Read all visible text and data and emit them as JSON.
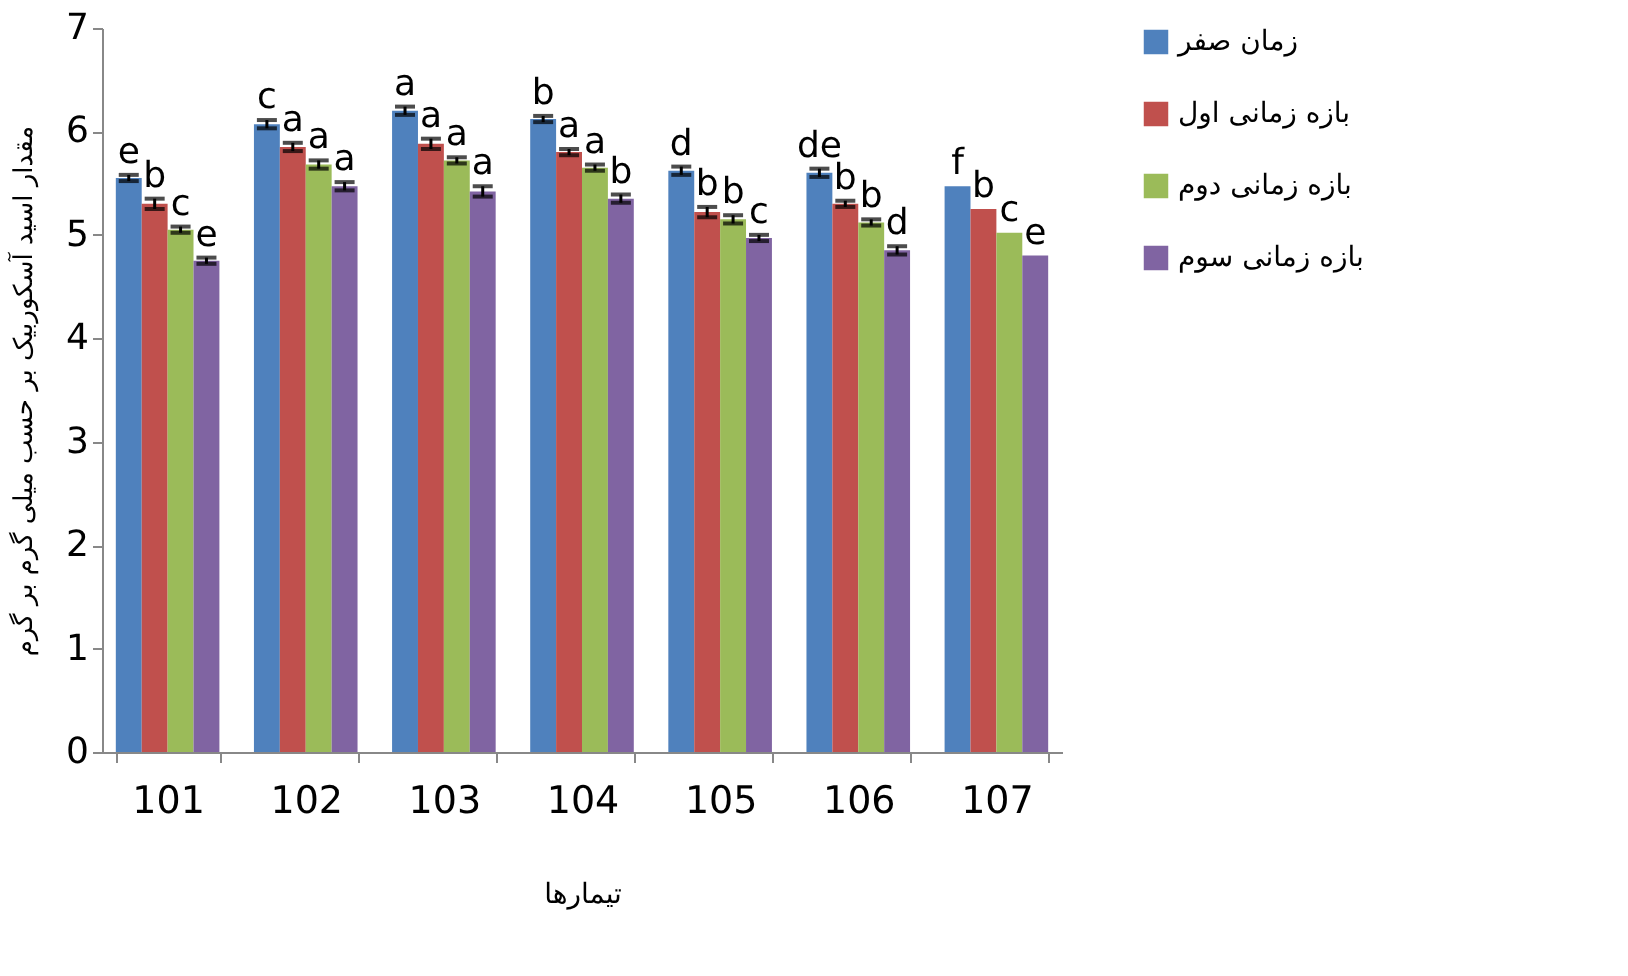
{
  "chart_data": {
    "type": "bar",
    "xlabel": "تیمارها",
    "ylabel": "مقدار اسید آسکوربیک بر حسب میلی گرم بر گرم",
    "categories": [
      "101",
      "102",
      "103",
      "104",
      "105",
      "106",
      "107"
    ],
    "series": [
      {
        "name": "زمان صفر",
        "color": "#4f81bd",
        "values": [
          5.55,
          6.07,
          6.2,
          6.12,
          5.62,
          5.6,
          5.47
        ],
        "errors": [
          0.03,
          0.04,
          0.04,
          0.03,
          0.04,
          0.04,
          null
        ],
        "value_labels": [
          "e",
          "c",
          "a",
          "b",
          "d",
          "de",
          "f"
        ]
      },
      {
        "name": "بازه زمانی اول",
        "color": "#c0504d",
        "values": [
          5.3,
          5.85,
          5.88,
          5.8,
          5.22,
          5.3,
          5.25
        ],
        "errors": [
          0.05,
          0.04,
          0.05,
          0.03,
          0.05,
          0.03,
          null
        ],
        "value_labels": [
          "b",
          "a",
          "a",
          "a",
          "b",
          "b",
          "b"
        ]
      },
      {
        "name": "بازه زمانی دوم",
        "color": "#9bbb59",
        "values": [
          5.05,
          5.68,
          5.72,
          5.65,
          5.15,
          5.12,
          5.02
        ],
        "errors": [
          0.03,
          0.04,
          0.03,
          0.03,
          0.04,
          0.03,
          null
        ],
        "value_labels": [
          "c",
          "a",
          "a",
          "a",
          "b",
          "b",
          "c"
        ]
      },
      {
        "name": "بازه زمانی سوم",
        "color": "#8064a2",
        "values": [
          4.75,
          5.47,
          5.42,
          5.35,
          4.97,
          4.85,
          4.8
        ],
        "errors": [
          0.03,
          0.04,
          0.05,
          0.04,
          0.03,
          0.04,
          null
        ],
        "value_labels": [
          "e",
          "a",
          "a",
          "b",
          "c",
          "d",
          "e"
        ]
      }
    ],
    "ylim": [
      0,
      7
    ],
    "yticks": [
      0,
      1,
      2,
      3,
      4,
      5,
      6,
      7
    ],
    "grid": false,
    "legend": "right"
  }
}
